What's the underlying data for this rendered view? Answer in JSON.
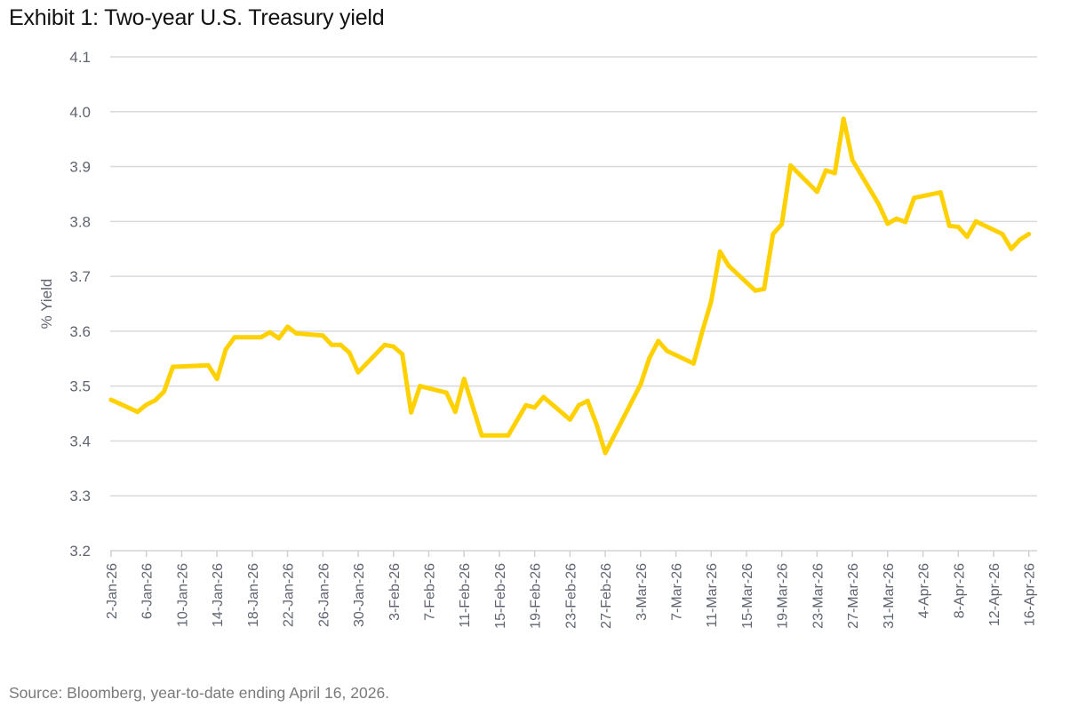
{
  "title": "Exhibit 1: Two-year U.S. Treasury yield",
  "source": "Source: Bloomberg, year-to-date ending April 16, 2026.",
  "chart_data": {
    "type": "line",
    "title": "Exhibit 1: Two-year U.S. Treasury yield",
    "xlabel": "",
    "ylabel": "% Yield",
    "ylim": [
      3.2,
      4.1
    ],
    "yticks": [
      "4.1",
      "4.0",
      "3.9",
      "3.8",
      "3.7",
      "3.6",
      "3.5",
      "3.4",
      "3.3",
      "3.2"
    ],
    "ytick_values": [
      4.1,
      4.0,
      3.9,
      3.8,
      3.7,
      3.6,
      3.5,
      3.4,
      3.3,
      3.2
    ],
    "xticks": [
      "2-Jan-26",
      "6-Jan-26",
      "10-Jan-26",
      "14-Jan-26",
      "18-Jan-26",
      "22-Jan-26",
      "26-Jan-26",
      "30-Jan-26",
      "3-Feb-26",
      "7-Feb-26",
      "11-Feb-26",
      "15-Feb-26",
      "19-Feb-26",
      "23-Feb-26",
      "27-Feb-26",
      "3-Mar-26",
      "7-Mar-26",
      "11-Mar-26",
      "15-Mar-26",
      "19-Mar-26",
      "23-Mar-26",
      "27-Mar-26",
      "31-Mar-26",
      "4-Apr-26",
      "8-Apr-26",
      "12-Apr-26",
      "16-Apr-26"
    ],
    "xtick_days": [
      0,
      4,
      8,
      12,
      16,
      20,
      24,
      28,
      32,
      36,
      40,
      44,
      48,
      52,
      56,
      60,
      64,
      68,
      72,
      76,
      80,
      84,
      88,
      92,
      96,
      100,
      104
    ],
    "xlim_days": [
      0,
      105
    ],
    "grid": true,
    "legend": "none",
    "line_color": "#FFD100",
    "series": [
      {
        "name": "Two-year U.S. Treasury yield",
        "x": [
          "2-Jan-26",
          "5-Jan-26",
          "6-Jan-26",
          "7-Jan-26",
          "8-Jan-26",
          "9-Jan-26",
          "12-Jan-26",
          "13-Jan-26",
          "14-Jan-26",
          "15-Jan-26",
          "16-Jan-26",
          "19-Jan-26",
          "20-Jan-26",
          "21-Jan-26",
          "22-Jan-26",
          "23-Jan-26",
          "26-Jan-26",
          "27-Jan-26",
          "28-Jan-26",
          "29-Jan-26",
          "30-Jan-26",
          "2-Feb-26",
          "3-Feb-26",
          "4-Feb-26",
          "5-Feb-26",
          "6-Feb-26",
          "9-Feb-26",
          "10-Feb-26",
          "11-Feb-26",
          "13-Feb-26",
          "16-Feb-26",
          "18-Feb-26",
          "19-Feb-26",
          "20-Feb-26",
          "23-Feb-26",
          "24-Feb-26",
          "25-Feb-26",
          "26-Feb-26",
          "27-Feb-26",
          "3-Mar-26",
          "4-Mar-26",
          "5-Mar-26",
          "6-Mar-26",
          "9-Mar-26",
          "10-Mar-26",
          "11-Mar-26",
          "12-Mar-26",
          "13-Mar-26",
          "16-Mar-26",
          "17-Mar-26",
          "18-Mar-26",
          "19-Mar-26",
          "20-Mar-26",
          "23-Mar-26",
          "24-Mar-26",
          "25-Mar-26",
          "26-Mar-26",
          "27-Mar-26",
          "30-Mar-26",
          "31-Mar-26",
          "1-Apr-26",
          "2-Apr-26",
          "3-Apr-26",
          "6-Apr-26",
          "7-Apr-26",
          "8-Apr-26",
          "9-Apr-26",
          "10-Apr-26",
          "13-Apr-26",
          "14-Apr-26",
          "15-Apr-26",
          "16-Apr-26"
        ],
        "days": [
          0,
          3,
          4,
          5,
          6,
          7,
          10,
          11,
          12,
          13,
          14,
          17,
          18,
          19,
          20,
          21,
          24,
          25,
          26,
          27,
          28,
          31,
          32,
          33,
          34,
          35,
          38,
          39,
          40,
          42,
          45,
          47,
          48,
          49,
          52,
          53,
          54,
          55,
          56,
          60,
          61,
          62,
          63,
          66,
          67,
          68,
          69,
          70,
          73,
          74,
          75,
          76,
          77,
          80,
          81,
          82,
          83,
          84,
          87,
          88,
          89,
          90,
          91,
          94,
          95,
          96,
          97,
          98,
          101,
          102,
          103,
          104
        ],
        "values": [
          3.475,
          3.453,
          3.466,
          3.474,
          3.49,
          3.535,
          3.537,
          3.538,
          3.513,
          3.567,
          3.589,
          3.589,
          3.598,
          3.587,
          3.608,
          3.596,
          3.592,
          3.575,
          3.575,
          3.561,
          3.525,
          3.575,
          3.572,
          3.558,
          3.452,
          3.5,
          3.488,
          3.453,
          3.513,
          3.41,
          3.41,
          3.465,
          3.461,
          3.48,
          3.439,
          3.465,
          3.473,
          3.431,
          3.378,
          3.503,
          3.551,
          3.582,
          3.564,
          3.541,
          3.6,
          3.654,
          3.745,
          3.719,
          3.674,
          3.677,
          3.777,
          3.795,
          3.902,
          3.854,
          3.893,
          3.888,
          3.987,
          3.912,
          3.831,
          3.796,
          3.805,
          3.799,
          3.843,
          3.853,
          3.792,
          3.79,
          3.772,
          3.8,
          3.777,
          3.75,
          3.767,
          3.777
        ]
      }
    ]
  }
}
